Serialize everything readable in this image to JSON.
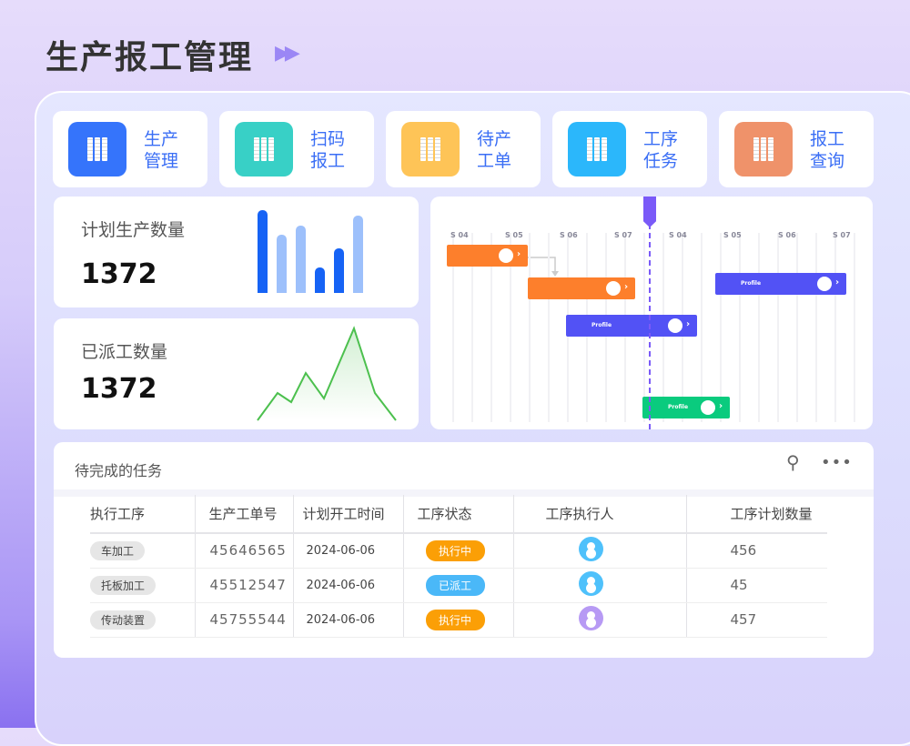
{
  "page_title": "生产报工管理",
  "nav": [
    {
      "label": "生产管理",
      "color": "#3574fb"
    },
    {
      "label": "扫码报工",
      "color": "#38d0c6"
    },
    {
      "label": "待产工单",
      "color": "#fec457"
    },
    {
      "label": "工序任务",
      "color": "#2bb7fb"
    },
    {
      "label": "报工查询",
      "color": "#ef926a"
    }
  ],
  "stats": [
    {
      "label": "计划生产数量",
      "value": "1372",
      "bars": [
        91,
        64,
        74,
        28,
        49,
        85
      ],
      "bar_colors": [
        "#1663f5",
        "#9dc0fb",
        "#9dc0fb",
        "#1663f5",
        "#1663f5",
        "#9dc0fb"
      ]
    },
    {
      "label": "已派工数量",
      "value": "1372",
      "line": [
        0,
        30,
        20,
        52,
        24,
        101,
        30,
        0
      ],
      "line_color": "#4cc04e"
    }
  ],
  "gantt": {
    "columns": [
      "S 04",
      "S 05",
      "S 06",
      "S 07",
      "S 04",
      "S 05",
      "S 06",
      "S 07"
    ],
    "bars": [
      {
        "label": "",
        "color": "#fd7f2c"
      },
      {
        "label": "",
        "color": "#fd7f2c"
      },
      {
        "label": "Profile",
        "color": "#5252f5"
      },
      {
        "label": "Profile",
        "color": "#5252f5"
      },
      {
        "label": "Profile",
        "color": "#0acb7e"
      }
    ],
    "today_color": "#7a5af8"
  },
  "tasks": {
    "title": "待完成的任务",
    "headers": [
      "执行工序",
      "生产工单号",
      "计划开工时间",
      "工序状态",
      "工序执行人",
      "工序计划数量"
    ],
    "rows": [
      {
        "process": "车加工",
        "order": "45646565",
        "date": "2024-06-06",
        "status": "执行中",
        "status_color": "#fb9f06",
        "avatar_color": "#4fc1fb",
        "qty": "456"
      },
      {
        "process": "托板加工",
        "order": "45512547",
        "date": "2024-06-06",
        "status": "已派工",
        "status_color": "#4ab8f8",
        "avatar_color": "#4fc1fb",
        "qty": "45"
      },
      {
        "process": "传动装置",
        "order": "45755544",
        "date": "2024-06-06",
        "status": "执行中",
        "status_color": "#fb9f06",
        "avatar_color": "#b79af4",
        "qty": "457"
      }
    ]
  }
}
